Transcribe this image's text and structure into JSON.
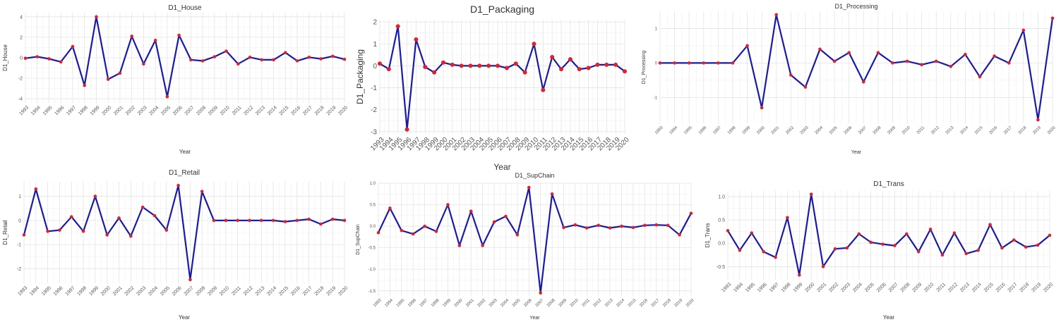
{
  "colors": {
    "line": "#1a1aa6",
    "point": "#e0202a",
    "grid": "#e3e3e3"
  },
  "chart_data": [
    {
      "type": "line",
      "title": "D1_House",
      "xlabel": "Year",
      "ylabel": "D1_House",
      "x": [
        1993,
        1994,
        1995,
        1996,
        1997,
        1998,
        1999,
        2000,
        2001,
        2002,
        2003,
        2004,
        2005,
        2006,
        2007,
        2008,
        2009,
        2010,
        2011,
        2012,
        2013,
        2014,
        2015,
        2016,
        2017,
        2018,
        2019,
        2020
      ],
      "y": [
        -0.05,
        0.1,
        -0.1,
        -0.4,
        1.1,
        -2.7,
        4.0,
        -2.1,
        -1.5,
        2.1,
        -0.6,
        1.7,
        -3.8,
        2.2,
        -0.2,
        -0.3,
        0.1,
        0.65,
        -0.6,
        0.05,
        -0.2,
        -0.2,
        0.5,
        -0.3,
        0.05,
        -0.1,
        0.15,
        -0.15
      ],
      "yticks": [
        -4,
        -2,
        0,
        2,
        4
      ],
      "ylim": [
        -4.4,
        4.4
      ],
      "grid": true
    },
    {
      "type": "line",
      "title": "D1_Packaging",
      "xlabel": "Year",
      "ylabel": "D1_Packaging",
      "x": [
        1993,
        1994,
        1995,
        1996,
        1997,
        1998,
        1999,
        2000,
        2001,
        2002,
        2003,
        2004,
        2005,
        2006,
        2007,
        2008,
        2009,
        2010,
        2011,
        2012,
        2013,
        2014,
        2015,
        2016,
        2017,
        2018,
        2019,
        2020
      ],
      "y": [
        0.1,
        -0.15,
        1.8,
        -2.9,
        1.2,
        -0.05,
        -0.3,
        0.15,
        0.05,
        0.0,
        0.0,
        0.0,
        0.0,
        0.0,
        -0.1,
        0.1,
        -0.3,
        1.0,
        -1.1,
        0.4,
        -0.15,
        0.3,
        -0.15,
        -0.1,
        0.05,
        0.05,
        0.05,
        -0.25
      ],
      "yticks": [
        -3,
        -2,
        -1,
        0,
        1,
        2
      ],
      "ylim": [
        -3.1,
        2.1
      ],
      "grid": true
    },
    {
      "type": "line",
      "title": "D1_Processing",
      "xlabel": "Year",
      "ylabel": "D1_Processing",
      "x": [
        1993,
        1994,
        1995,
        1996,
        1997,
        1998,
        1999,
        2000,
        2001,
        2002,
        2003,
        2004,
        2005,
        2006,
        2007,
        2008,
        2009,
        2010,
        2011,
        2012,
        2013,
        2014,
        2015,
        2016,
        2017,
        2018,
        2019,
        2020
      ],
      "y": [
        0.0,
        0.0,
        0.0,
        0.0,
        0.0,
        0.0,
        0.5,
        -1.3,
        1.4,
        -0.35,
        -0.7,
        0.4,
        0.05,
        0.3,
        -0.55,
        0.3,
        0.0,
        0.05,
        -0.05,
        0.05,
        -0.1,
        0.25,
        -0.4,
        0.2,
        0.0,
        0.95,
        -1.65,
        1.3
      ],
      "yticks": [
        -1,
        0,
        1
      ],
      "ylim": [
        -1.75,
        1.5
      ],
      "grid": true
    },
    {
      "type": "line",
      "title": "D1_Retail",
      "xlabel": "Year",
      "ylabel": "D1_Retail",
      "x": [
        1993,
        1994,
        1995,
        1996,
        1997,
        1998,
        1999,
        2000,
        2001,
        2002,
        2003,
        2004,
        2005,
        2006,
        2007,
        2008,
        2009,
        2010,
        2011,
        2012,
        2013,
        2014,
        2015,
        2016,
        2017,
        2018,
        2019,
        2020
      ],
      "y": [
        -0.6,
        1.3,
        -0.45,
        -0.4,
        0.15,
        -0.45,
        1.0,
        -0.6,
        0.1,
        -0.65,
        0.55,
        0.2,
        -0.4,
        1.45,
        -2.45,
        1.2,
        0.0,
        0.0,
        0.0,
        0.0,
        0.0,
        0.0,
        -0.05,
        0.0,
        0.05,
        -0.15,
        0.05,
        0.0
      ],
      "yticks": [
        -2,
        -1,
        0,
        1
      ],
      "ylim": [
        -2.6,
        1.6
      ],
      "grid": true
    },
    {
      "type": "line",
      "title": "D1_SupChain",
      "xlabel": "Year",
      "ylabel": "D1_SupChain",
      "x": [
        1993,
        1994,
        1995,
        1996,
        1997,
        1998,
        1999,
        2000,
        2001,
        2002,
        2003,
        2004,
        2005,
        2006,
        2007,
        2008,
        2009,
        2010,
        2011,
        2012,
        2013,
        2014,
        2015,
        2016,
        2017,
        2018,
        2019,
        2020
      ],
      "y": [
        -0.15,
        0.42,
        -0.1,
        -0.18,
        0.0,
        -0.12,
        0.5,
        -0.45,
        0.35,
        -0.45,
        0.1,
        0.23,
        -0.2,
        0.9,
        -1.55,
        0.75,
        -0.03,
        0.03,
        -0.04,
        0.02,
        -0.04,
        0.0,
        -0.03,
        0.02,
        0.03,
        0.02,
        -0.2,
        0.3
      ],
      "yticks": [
        -1.5,
        -1.0,
        -0.5,
        0.0,
        0.5,
        1.0
      ],
      "yticklabels": [
        "-1.5",
        "-1.0",
        "-0.5",
        "0.0",
        "0.5",
        "1.0"
      ],
      "ylim": [
        -1.62,
        1.0
      ],
      "grid": true
    },
    {
      "type": "line",
      "title": "D1_Trans",
      "xlabel": "Year",
      "ylabel": "D1_Trans",
      "x": [
        1993,
        1994,
        1995,
        1996,
        1997,
        1998,
        1999,
        2000,
        2001,
        2002,
        2003,
        2004,
        2005,
        2006,
        2007,
        2008,
        2009,
        2010,
        2011,
        2012,
        2013,
        2014,
        2015,
        2016,
        2017,
        2018,
        2019,
        2020
      ],
      "y": [
        0.27,
        -0.15,
        0.22,
        -0.18,
        -0.3,
        0.55,
        -0.68,
        1.05,
        -0.5,
        -0.12,
        -0.1,
        0.2,
        0.02,
        -0.02,
        -0.05,
        0.2,
        -0.18,
        0.3,
        -0.25,
        0.22,
        -0.22,
        -0.15,
        0.4,
        -0.1,
        0.07,
        -0.08,
        -0.04,
        0.17
      ],
      "yticks": [
        -0.5,
        0.0,
        0.5,
        1.0
      ],
      "yticklabels": [
        "-0.5",
        "0.0",
        "0.5",
        "1.0"
      ],
      "ylim": [
        -0.78,
        1.12
      ],
      "grid": true
    }
  ]
}
